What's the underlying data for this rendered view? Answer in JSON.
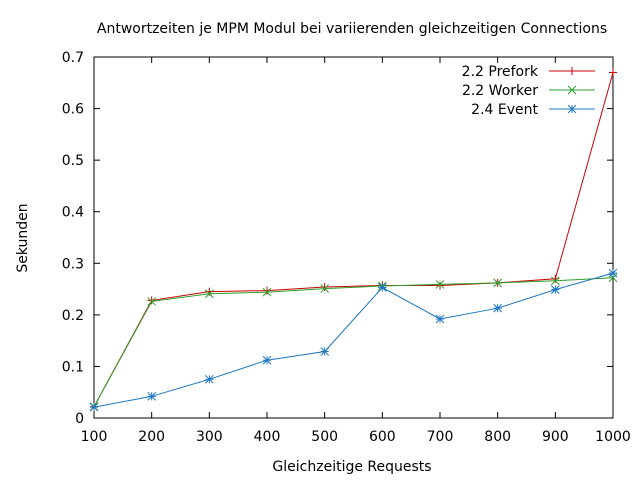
{
  "chart_data": {
    "type": "line",
    "title": "Antwortzeiten je MPM Modul bei variierenden gleichzeitigen Connections",
    "xlabel": "Gleichzeitige Requests",
    "ylabel": "Sekunden",
    "x": [
      100,
      200,
      300,
      400,
      500,
      600,
      700,
      800,
      900,
      1000
    ],
    "xlim": [
      100,
      1000
    ],
    "ylim": [
      0,
      0.7
    ],
    "xticks": [
      "100",
      "200",
      "300",
      "400",
      "500",
      "600",
      "700",
      "800",
      "900",
      "1000"
    ],
    "yticks": [
      "0",
      "0.1",
      "0.2",
      "0.3",
      "0.4",
      "0.5",
      "0.6",
      "0.7"
    ],
    "xtick_values": [
      100,
      200,
      300,
      400,
      500,
      600,
      700,
      800,
      900,
      1000
    ],
    "ytick_values": [
      0,
      0.1,
      0.2,
      0.3,
      0.4,
      0.5,
      0.6,
      0.7
    ],
    "grid": false,
    "legend_position": "top-right",
    "series": [
      {
        "name": "2.2 Prefork",
        "color": "#cc0000",
        "marker": "plus",
        "values": [
          0.022,
          0.228,
          0.245,
          0.247,
          0.254,
          0.257,
          0.257,
          0.262,
          0.27,
          0.67
        ]
      },
      {
        "name": "2.2 Worker",
        "color": "#2ca02c",
        "marker": "cross",
        "values": [
          0.022,
          0.226,
          0.241,
          0.244,
          0.251,
          0.256,
          0.259,
          0.262,
          0.266,
          0.272
        ]
      },
      {
        "name": "2.4 Event",
        "color": "#1f77c4",
        "marker": "star",
        "values": [
          0.021,
          0.042,
          0.075,
          0.112,
          0.129,
          0.253,
          0.192,
          0.213,
          0.249,
          0.281
        ]
      }
    ]
  }
}
